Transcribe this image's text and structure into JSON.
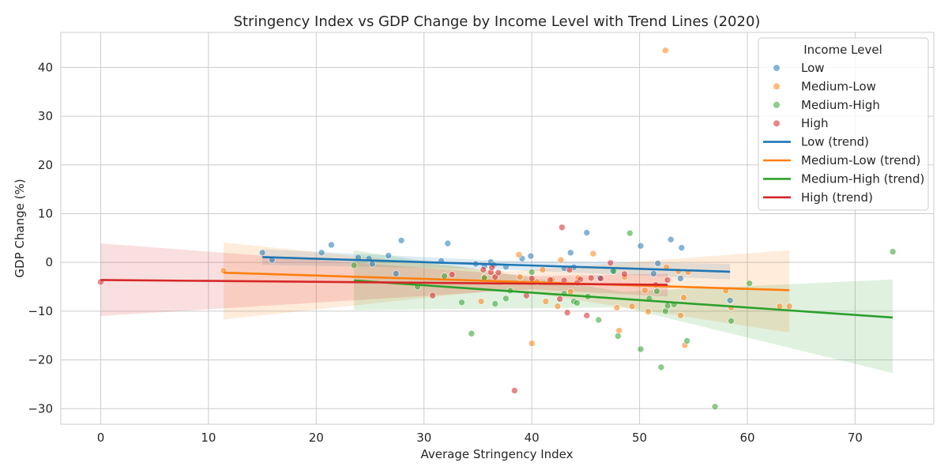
{
  "chart_data": {
    "type": "scatter",
    "title": "Stringency Index vs GDP Change by Income Level with Trend Lines (2020)",
    "xlabel": "Average Stringency Index",
    "ylabel": "GDP Change (%)",
    "xlim": [
      -3.7,
      77.3
    ],
    "ylim": [
      -33.2,
      47.2
    ],
    "xticks": [
      0,
      10,
      20,
      30,
      40,
      50,
      60,
      70
    ],
    "yticks": [
      -30,
      -20,
      -10,
      0,
      10,
      20,
      30,
      40
    ],
    "grid": true,
    "legend": {
      "title": "Income Level",
      "placement": "top-right",
      "entries": [
        "Low",
        "Medium-Low",
        "Medium-High",
        "High",
        "Low (trend)",
        "Medium-Low (trend)",
        "Medium-High (trend)",
        "High (trend)"
      ]
    },
    "series": [
      {
        "name": "Low",
        "color": "#1f77b4",
        "points": [
          [
            15.0,
            2.0
          ],
          [
            15.9,
            0.5
          ],
          [
            20.5,
            2.0
          ],
          [
            21.4,
            3.6
          ],
          [
            23.9,
            1.0
          ],
          [
            24.9,
            0.8
          ],
          [
            25.2,
            -0.3
          ],
          [
            26.7,
            1.4
          ],
          [
            27.4,
            -2.3
          ],
          [
            27.9,
            4.5
          ],
          [
            31.6,
            0.3
          ],
          [
            32.2,
            3.9
          ],
          [
            34.8,
            -0.3
          ],
          [
            35.6,
            -0.8
          ],
          [
            36.2,
            0.1
          ],
          [
            36.5,
            -0.5
          ],
          [
            37.6,
            -0.9
          ],
          [
            39.1,
            0.8
          ],
          [
            39.9,
            1.3
          ],
          [
            43.0,
            -1.2
          ],
          [
            43.6,
            2.0
          ],
          [
            43.9,
            -1.0
          ],
          [
            45.1,
            6.1
          ],
          [
            46.3,
            -3.2
          ],
          [
            47.5,
            -1.8
          ],
          [
            50.1,
            3.4
          ],
          [
            51.3,
            -2.3
          ],
          [
            51.7,
            -0.2
          ],
          [
            52.9,
            4.7
          ],
          [
            53.8,
            -3.3
          ],
          [
            53.9,
            3.0
          ],
          [
            58.4,
            -7.8
          ]
        ]
      },
      {
        "name": "Medium-Low",
        "color": "#ff7f0e",
        "points": [
          [
            11.4,
            -1.7
          ],
          [
            35.3,
            -8.0
          ],
          [
            35.6,
            -3.0
          ],
          [
            38.8,
            1.6
          ],
          [
            38.9,
            -3.0
          ],
          [
            40.0,
            -16.6
          ],
          [
            40.5,
            -4.0
          ],
          [
            41.0,
            -1.5
          ],
          [
            41.3,
            -8.0
          ],
          [
            41.9,
            -3.5
          ],
          [
            42.4,
            -9.0
          ],
          [
            42.7,
            0.5
          ],
          [
            43.6,
            -6.0
          ],
          [
            45.7,
            1.8
          ],
          [
            47.9,
            -9.3
          ],
          [
            48.1,
            -14.0
          ],
          [
            48.6,
            -3.0
          ],
          [
            49.3,
            -9.0
          ],
          [
            50.8,
            -10.1
          ],
          [
            52.4,
            43.5
          ],
          [
            52.5,
            -1.0
          ],
          [
            53.6,
            -1.8
          ],
          [
            53.8,
            -10.9
          ],
          [
            54.1,
            -7.2
          ],
          [
            54.2,
            -17.0
          ],
          [
            54.5,
            -2.0
          ],
          [
            58.0,
            -5.8
          ],
          [
            58.5,
            -9.3
          ],
          [
            63.0,
            -9.0
          ],
          [
            63.9,
            -9.0
          ],
          [
            44.3,
            -3.2
          ],
          [
            50.5,
            -5.7
          ]
        ]
      },
      {
        "name": "Medium-High",
        "color": "#2ca02c",
        "points": [
          [
            23.5,
            -0.6
          ],
          [
            29.4,
            -5.0
          ],
          [
            31.9,
            -2.8
          ],
          [
            33.5,
            -8.2
          ],
          [
            34.4,
            -14.6
          ],
          [
            35.6,
            -3.2
          ],
          [
            36.6,
            -8.5
          ],
          [
            37.6,
            -7.4
          ],
          [
            38.0,
            -5.8
          ],
          [
            40.0,
            -2.0
          ],
          [
            43.0,
            -6.4
          ],
          [
            43.9,
            -8.0
          ],
          [
            44.2,
            -8.3
          ],
          [
            45.2,
            -7.0
          ],
          [
            46.2,
            -11.8
          ],
          [
            47.6,
            -1.8
          ],
          [
            48.0,
            -15.1
          ],
          [
            49.1,
            6.0
          ],
          [
            50.1,
            -17.8
          ],
          [
            50.9,
            -7.4
          ],
          [
            51.6,
            -5.9
          ],
          [
            52.0,
            -21.5
          ],
          [
            52.4,
            -10.0
          ],
          [
            52.6,
            -8.9
          ],
          [
            54.4,
            -16.1
          ],
          [
            57.0,
            -29.6
          ],
          [
            58.5,
            -12.0
          ],
          [
            60.2,
            -4.3
          ],
          [
            73.5,
            2.2
          ],
          [
            53.2,
            -8.6
          ]
        ]
      },
      {
        "name": "High",
        "color": "#d62728",
        "points": [
          [
            0.0,
            -4.0
          ],
          [
            30.8,
            -6.8
          ],
          [
            32.6,
            -2.5
          ],
          [
            35.5,
            -1.5
          ],
          [
            36.2,
            -2.0
          ],
          [
            36.6,
            -3.0
          ],
          [
            36.9,
            -2.1
          ],
          [
            38.4,
            -26.3
          ],
          [
            39.5,
            -6.8
          ],
          [
            40.0,
            -3.3
          ],
          [
            41.7,
            -3.6
          ],
          [
            42.6,
            -7.5
          ],
          [
            42.8,
            7.2
          ],
          [
            43.0,
            -3.7
          ],
          [
            43.3,
            -10.3
          ],
          [
            43.5,
            -1.5
          ],
          [
            44.5,
            -3.5
          ],
          [
            45.1,
            -10.9
          ],
          [
            45.5,
            -3.2
          ],
          [
            46.4,
            -3.3
          ],
          [
            47.3,
            -0.1
          ],
          [
            48.6,
            -2.4
          ],
          [
            51.5,
            -4.6
          ],
          [
            52.6,
            -3.6
          ],
          [
            36.3,
            -1.0
          ],
          [
            44.2,
            -4.2
          ]
        ]
      }
    ],
    "trend_lines": [
      {
        "name": "Low (trend)",
        "color": "#1f77b4",
        "x": [
          15.0,
          58.4
        ],
        "y": [
          1.1,
          -1.9
        ],
        "ci": [
          [
            15.0,
            2.7,
            -0.5
          ],
          [
            36.7,
            0.4,
            -1.4
          ],
          [
            58.4,
            -0.3,
            -3.5
          ]
        ]
      },
      {
        "name": "Medium-Low (trend)",
        "color": "#ff7f0e",
        "x": [
          11.4,
          63.9
        ],
        "y": [
          -2.1,
          -5.7
        ],
        "ci": [
          [
            11.4,
            4.1,
            -11.7
          ],
          [
            37.6,
            -1.9,
            -5.5
          ],
          [
            63.9,
            2.5,
            -14.4
          ]
        ]
      },
      {
        "name": "Medium-High (trend)",
        "color": "#2ca02c",
        "x": [
          23.5,
          73.5
        ],
        "y": [
          -3.7,
          -11.3
        ],
        "ci": [
          [
            23.5,
            2.5,
            -9.8
          ],
          [
            48.5,
            -6.0,
            -9.2
          ],
          [
            73.5,
            -3.5,
            -22.7
          ]
        ]
      },
      {
        "name": "High (trend)",
        "color": "#d62728",
        "x": [
          0.0,
          52.6
        ],
        "y": [
          -3.6,
          -4.6
        ],
        "ci": [
          [
            0.0,
            3.9,
            -11.0
          ],
          [
            40.0,
            -2.8,
            -5.5
          ],
          [
            52.6,
            -2.3,
            -7.0
          ]
        ]
      }
    ]
  }
}
